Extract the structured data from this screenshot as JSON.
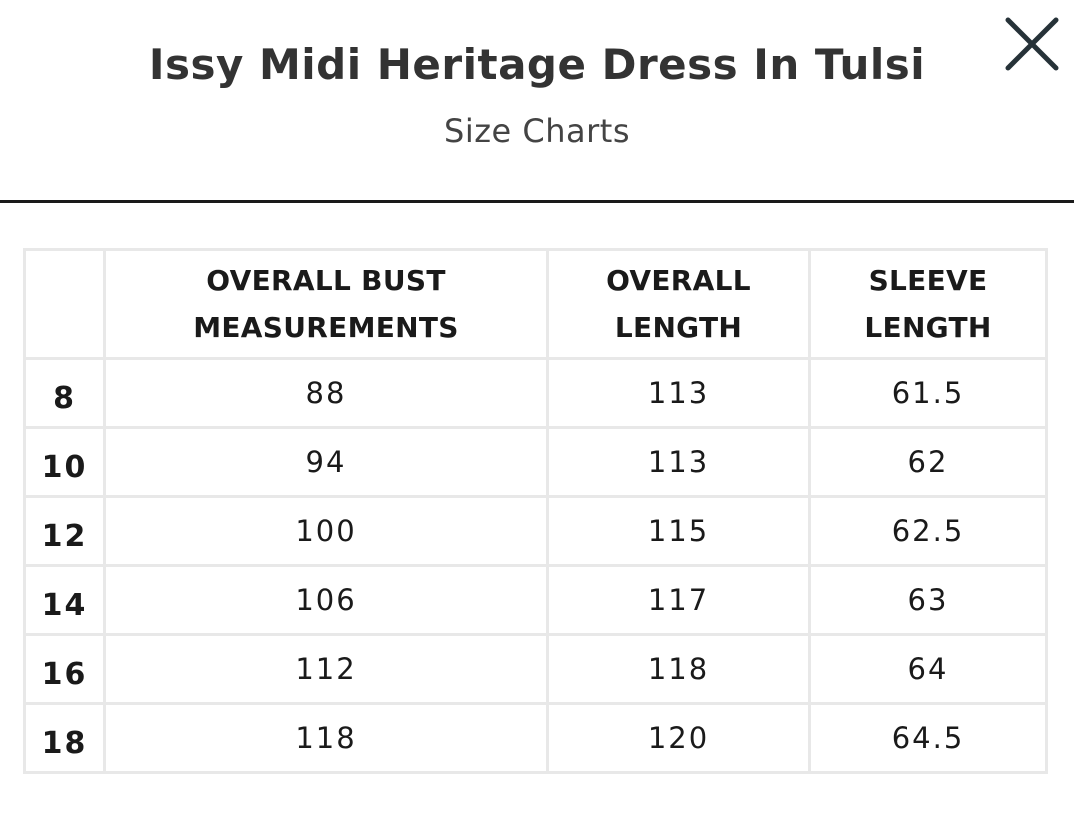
{
  "header": {
    "title": "Issy Midi Heritage Dress In Tulsi",
    "subtitle": "Size Charts",
    "close_icon": "close-icon"
  },
  "table": {
    "columns": [
      {
        "line1": "",
        "line2": ""
      },
      {
        "line1": "OVERALL BUST",
        "line2": "MEASUREMENTS"
      },
      {
        "line1": "OVERALL",
        "line2": "LENGTH"
      },
      {
        "line1": "SLEEVE",
        "line2": "LENGTH"
      }
    ],
    "rows": [
      {
        "size": "8",
        "bust": "88",
        "length": "113",
        "sleeve": "61.5"
      },
      {
        "size": "10",
        "bust": "94",
        "length": "113",
        "sleeve": "62"
      },
      {
        "size": "12",
        "bust": "100",
        "length": "115",
        "sleeve": "62.5"
      },
      {
        "size": "14",
        "bust": "106",
        "length": "117",
        "sleeve": "63"
      },
      {
        "size": "16",
        "bust": "112",
        "length": "118",
        "sleeve": "64"
      },
      {
        "size": "18",
        "bust": "118",
        "length": "120",
        "sleeve": "64.5"
      }
    ]
  },
  "colors": {
    "text": "#1a1a1a",
    "border": "#e8e8e8",
    "divider": "#1a1a1a"
  }
}
